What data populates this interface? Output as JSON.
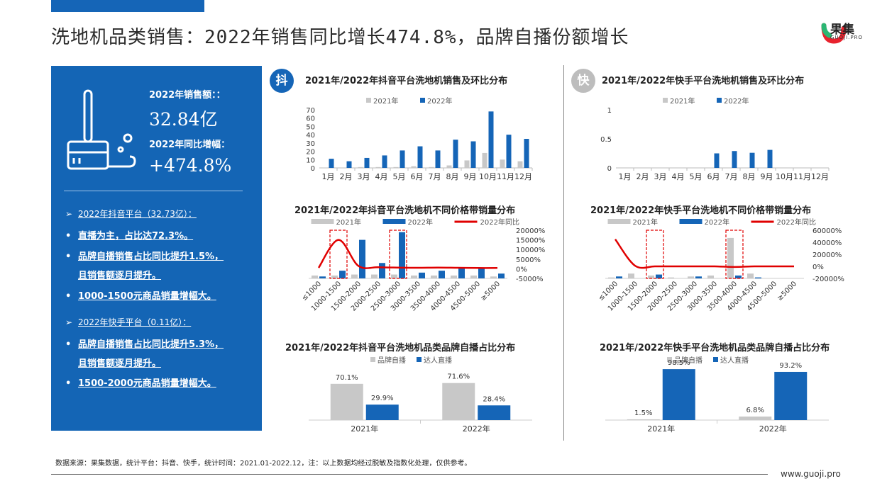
{
  "header": {
    "title": "洗地机品类销售：2022年销售同比增长474.8%，品牌自播份额增长",
    "logo_text": "果集",
    "logo_sub": "GUOJI.PRO"
  },
  "summary": {
    "sales_label": "2022年销售额：：",
    "sales_value": "32.84亿",
    "growth_label": "2022年同比增幅：",
    "growth_value": "+474.8%",
    "bullets": [
      {
        "mark": "➢",
        "text": "2022年抖音平台（32.73亿）：",
        "thin": true
      },
      {
        "mark": "•",
        "text": "直播为主，占比达72.3%。"
      },
      {
        "mark": "•",
        "text": "品牌自播销售占比同比提升1.5%，"
      },
      {
        "mark": "",
        "text": "且销售额逐月提升。"
      },
      {
        "mark": "•",
        "text": "1000-1500元商品销量增幅大。"
      },
      {
        "mark": "➢",
        "text": "2022年快手平台（0.11亿）：",
        "thin": true
      },
      {
        "mark": "•",
        "text": "品牌自播销售占比同比提升5.3%，"
      },
      {
        "mark": "",
        "text": "且销售额逐月提升。"
      },
      {
        "mark": "•",
        "text": "1500-2000元商品销量增幅大。"
      }
    ]
  },
  "badges": {
    "douyin": "抖",
    "kuaishou": "快"
  },
  "colors": {
    "blue": "#1565b7",
    "gray": "#c8c8c8",
    "red": "#e00000",
    "badge_gray": "#bdbdbd"
  },
  "footer": {
    "source": "数据来源：果集数据，统计平台：抖音、快手，统计时间：2021.01-2022.12，注：以上数据均经过脱敏及指数化处理，仅供参考。",
    "url": "www.guoji.pro"
  },
  "chart_data": [
    {
      "id": "dy_monthly",
      "type": "bar",
      "title": "2021年/2022年抖音平台洗地机销售及环比分布",
      "categories": [
        "1月",
        "2月",
        "3月",
        "4月",
        "5月",
        "6月",
        "7月",
        "8月",
        "9月",
        "10月",
        "11月",
        "12月"
      ],
      "series": [
        {
          "name": "2021年",
          "values": [
            0.5,
            0.5,
            1,
            1,
            1,
            2,
            1,
            3,
            9,
            18,
            10,
            8
          ]
        },
        {
          "name": "2022年",
          "values": [
            11,
            8,
            12,
            15,
            21,
            26,
            21,
            34,
            32,
            68,
            40,
            35
          ]
        }
      ],
      "yticks": [
        "0",
        "10",
        "20",
        "30",
        "40",
        "50",
        "60",
        "70"
      ],
      "ylim": [
        0,
        70
      ]
    },
    {
      "id": "ks_monthly",
      "type": "bar",
      "title": "2021年/2022年快手平台洗地机销售及环比分布",
      "categories": [
        "1月",
        "2月",
        "3月",
        "4月",
        "5月",
        "6月",
        "7月",
        "8月",
        "9月",
        "10月",
        "11月",
        "12月"
      ],
      "series": [
        {
          "name": "2021年",
          "values": [
            0,
            0,
            0,
            0,
            0,
            0,
            0,
            0,
            0,
            0,
            0,
            0
          ]
        },
        {
          "name": "2022年",
          "values": [
            0,
            0,
            0,
            0,
            0,
            0.25,
            0.29,
            0.26,
            0.31,
            0,
            0,
            0
          ]
        }
      ],
      "yticks": [
        "0",
        "0.5",
        "1"
      ],
      "ylim": [
        0,
        1
      ]
    },
    {
      "id": "dy_price",
      "type": "bar",
      "title": "2021年/2022年抖音平台洗地机不同价格带销量分布",
      "categories": [
        "≤1000",
        "1000-1500",
        "1500-2000",
        "2000-2500",
        "2500-3000",
        "3000-3500",
        "3500-4000",
        "4000-4500",
        "4500-5000",
        "≥5000"
      ],
      "series": [
        {
          "name": "2021年",
          "values": [
            3,
            3,
            4,
            4,
            4,
            3,
            3,
            3,
            3,
            2
          ]
        },
        {
          "name": "2022年",
          "values": [
            2,
            8,
            40,
            16,
            48,
            6,
            8,
            11,
            10,
            5
          ]
        },
        {
          "name": "2022年同比",
          "values": [
            500,
            15000,
            1500,
            800,
            600,
            500,
            600,
            500,
            400,
            400
          ]
        }
      ],
      "ylim": [
        0,
        50
      ],
      "y2ticks": [
        "20000%",
        "15000%",
        "10000%",
        "5000%",
        "0%",
        "-5000%"
      ],
      "y2lim": [
        -5000,
        20000
      ]
    },
    {
      "id": "ks_price",
      "type": "bar",
      "title": "2021年/2022年快手平台洗地机不同价格带销量分布",
      "categories": [
        "≤1000",
        "1000-1500",
        "1500-2000",
        "2000-2500",
        "2500-3000",
        "3000-3500",
        "3500-4000",
        "4000-4500",
        "4500-5000",
        "≥5000"
      ],
      "series": [
        {
          "name": "2021年",
          "values": [
            1,
            5,
            3,
            1,
            2,
            3,
            42,
            5,
            0,
            0
          ]
        },
        {
          "name": "2022年",
          "values": [
            2,
            0,
            4,
            0,
            2,
            0,
            3,
            1,
            0,
            0
          ]
        },
        {
          "name": "2022年同比",
          "values": [
            45000,
            1000,
            0,
            0,
            0,
            0,
            -1000,
            0,
            0,
            0
          ]
        }
      ],
      "ylim": [
        0,
        50
      ],
      "y2ticks": [
        "60000%",
        "40000%",
        "20000%",
        "0%",
        "-20000%"
      ],
      "y2lim": [
        -20000,
        60000
      ]
    },
    {
      "id": "dy_share",
      "type": "bar",
      "title": "2021年/2022年抖音平台洗地机品类品牌自播占比分布",
      "categories": [
        "2021年",
        "2022年"
      ],
      "series": [
        {
          "name": "品牌自播",
          "values": [
            70.1,
            71.6
          ],
          "labels": [
            "70.1%",
            "71.6%"
          ]
        },
        {
          "name": "达人直播",
          "values": [
            29.9,
            28.4
          ],
          "labels": [
            "29.9%",
            "28.4%"
          ]
        }
      ],
      "ylim": [
        0,
        100
      ]
    },
    {
      "id": "ks_share",
      "type": "bar",
      "title": "2021年/2022年快手平台洗地机品类品牌自播占比分布",
      "categories": [
        "2021年",
        "2022年"
      ],
      "series": [
        {
          "name": "品牌自播",
          "values": [
            1.5,
            6.8
          ],
          "labels": [
            "1.5%",
            "6.8%"
          ]
        },
        {
          "name": "达人直播",
          "values": [
            98.5,
            93.2
          ],
          "labels": [
            "98.5%",
            "93.2%"
          ]
        }
      ],
      "ylim": [
        0,
        100
      ]
    }
  ]
}
